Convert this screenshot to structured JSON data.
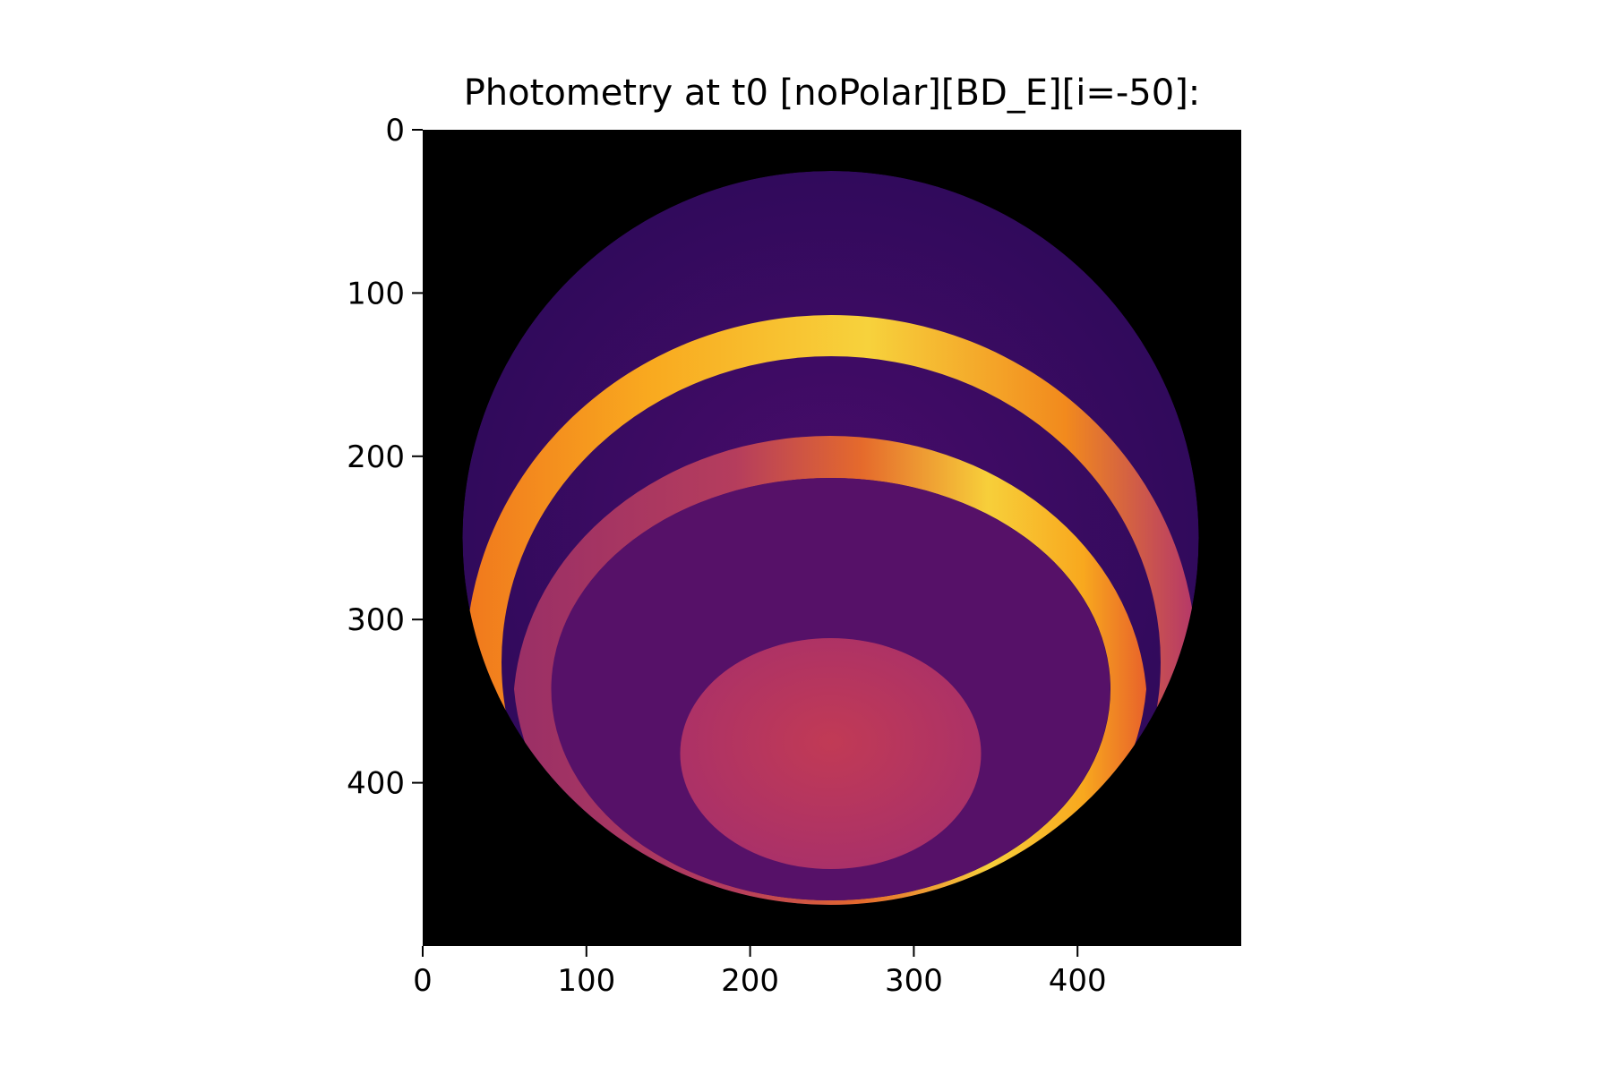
{
  "chart_data": {
    "type": "heatmap",
    "title": "Photometry at t0 [noPolar][BD_E][i=-50]:",
    "xlabel": "",
    "ylabel": "",
    "xlim": [
      0,
      500
    ],
    "ylim": [
      500,
      0
    ],
    "x_ticks": [
      0,
      100,
      200,
      300,
      400
    ],
    "y_ticks": [
      0,
      100,
      200,
      300,
      400
    ],
    "grid": false,
    "colormap": "inferno",
    "background_color": "#000000",
    "features": [
      {
        "shape": "disk",
        "center": [
          250,
          250
        ],
        "radius": 225,
        "color": "#3a0e64"
      },
      {
        "shape": "band",
        "center": [
          250,
          330
        ],
        "outer_radius": [
          245,
          300
        ],
        "inner_radius": [
          245,
          290
        ],
        "color": "#8f2a6a",
        "highlight": "#ef6f2a"
      },
      {
        "shape": "band",
        "center": [
          250,
          330
        ],
        "outer_radius": [
          225,
          215
        ],
        "inner_radius": [
          225,
          185
        ],
        "color": "#f2871e",
        "highlight": "#f7d23c"
      },
      {
        "shape": "band",
        "center": [
          250,
          340
        ],
        "outer_radius": [
          195,
          165
        ],
        "inner_radius": [
          170,
          125
        ],
        "color": "#a83564",
        "highlight": "#f59a1e"
      },
      {
        "shape": "disk",
        "center": [
          250,
          343
        ],
        "radius": [
          185,
          130
        ],
        "color": "#561168"
      },
      {
        "shape": "ellipse",
        "center": [
          250,
          383
        ],
        "radius": [
          93,
          70
        ],
        "color": "#b63a5e"
      }
    ]
  }
}
